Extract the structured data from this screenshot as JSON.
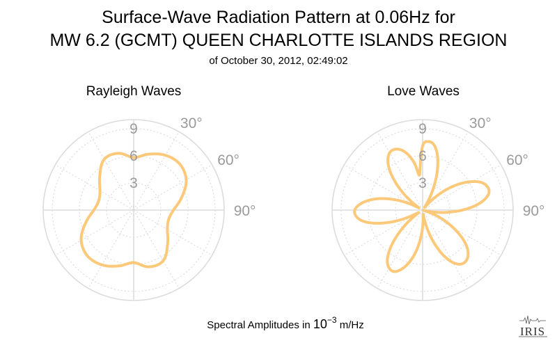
{
  "header": {
    "title_line1": "Surface-Wave Radiation Pattern at 0.06Hz for",
    "title_line2": "MW 6.2 (GCMT) QUEEN CHARLOTTE ISLANDS REGION",
    "subtitle": "of October 30, 2012, 02:49:02"
  },
  "footer": {
    "label": "Spectral Amplitudes in ",
    "unit_base": "10",
    "unit_exp": "−3",
    "unit_rest": " m/Hz",
    "logo": "IRIS"
  },
  "colors": {
    "curve": "#fcc97a",
    "grid": "#dcdcdc",
    "tick_text": "#9a9a9a"
  },
  "chart_data": [
    {
      "type": "polar-line",
      "title": "Rayleigh Waves",
      "r_ticks": [
        "3",
        "6",
        "9"
      ],
      "r_max": 10,
      "angle_labels": [
        "30°",
        "60°",
        "90°"
      ],
      "angle_ticks_deg": [
        30,
        60,
        90
      ],
      "grid_spokes_deg": [
        0,
        30,
        60,
        90,
        120,
        150,
        180,
        210,
        240,
        270,
        300,
        330
      ],
      "series": [
        {
          "theta_deg": [
            0,
            15,
            30,
            45,
            60,
            75,
            90,
            105,
            120,
            135,
            150,
            165,
            180,
            195,
            210,
            225,
            240,
            255,
            270,
            285,
            300,
            315,
            330,
            345
          ],
          "r": [
            5.8,
            6.4,
            7.0,
            7.2,
            6.7,
            5.5,
            4.4,
            4.0,
            4.3,
            5.3,
            6.5,
            6.5,
            5.8,
            6.4,
            7.0,
            7.2,
            6.7,
            5.5,
            4.4,
            4.0,
            4.3,
            5.3,
            6.5,
            6.5
          ]
        }
      ]
    },
    {
      "type": "polar-line",
      "title": "Love Waves",
      "r_ticks": [
        "3",
        "6",
        "9"
      ],
      "r_max": 10,
      "angle_labels": [
        "30°",
        "60°",
        "90°"
      ],
      "angle_ticks_deg": [
        30,
        60,
        90
      ],
      "grid_spokes_deg": [
        0,
        30,
        60,
        90,
        120,
        150,
        180,
        210,
        240,
        270,
        300,
        330
      ],
      "series": [
        {
          "theta_deg": [
            0,
            5,
            10,
            15,
            20,
            25,
            30,
            35,
            40,
            45,
            50,
            55,
            60,
            65,
            70,
            75,
            80,
            85,
            90,
            95,
            100,
            105,
            110,
            115,
            120,
            125,
            130,
            135,
            140,
            145,
            150,
            155,
            160,
            165,
            170,
            175,
            180,
            185,
            190,
            195,
            200,
            205,
            210,
            215,
            220,
            225,
            230,
            235,
            240,
            245,
            250,
            255,
            260,
            265,
            270,
            275,
            280,
            285,
            290,
            295,
            300,
            305,
            310,
            315,
            320,
            325,
            330,
            335,
            340,
            345,
            350,
            355
          ],
          "r": [
            7.1,
            7.6,
            7.3,
            6.3,
            4.8,
            3.1,
            1.5,
            0.4,
            0.8,
            2.2,
            3.7,
            5.1,
            6.3,
            7.2,
            7.6,
            7.6,
            7.0,
            5.9,
            4.4,
            2.8,
            1.3,
            0.1,
            1.1,
            2.5,
            3.9,
            5.3,
            6.4,
            7.1,
            7.4,
            7.3,
            6.7,
            5.6,
            4.1,
            2.5,
            1.0,
            0.5,
            1.9,
            3.4,
            4.9,
            6.1,
            7.0,
            7.5,
            7.4,
            6.8,
            5.6,
            4.0,
            2.3,
            0.7,
            0.7,
            2.3,
            4.0,
            5.6,
            6.8,
            7.4,
            7.5,
            7.0,
            6.1,
            4.9,
            3.4,
            1.9,
            0.5,
            1.0,
            2.5,
            4.1,
            5.6,
            6.7,
            7.3,
            7.4,
            7.1,
            6.4,
            5.3,
            3.9
          ]
        }
      ]
    }
  ]
}
